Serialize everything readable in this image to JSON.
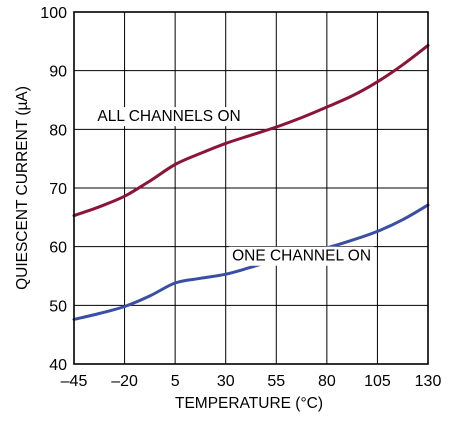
{
  "chart_data": {
    "type": "line",
    "title": "",
    "xlabel": "TEMPERATURE (°C)",
    "ylabel": "QUIESCENT CURRENT (µA)",
    "xlim": [
      -45,
      130
    ],
    "ylim": [
      40,
      100
    ],
    "x_ticks": [
      -45,
      -20,
      5,
      30,
      55,
      80,
      105,
      130
    ],
    "x_tick_labels": [
      "–45",
      "–20",
      "5",
      "30",
      "55",
      "80",
      "105",
      "130"
    ],
    "y_ticks": [
      40,
      50,
      60,
      70,
      80,
      90,
      100
    ],
    "y_tick_labels": [
      "40",
      "50",
      "60",
      "70",
      "80",
      "90",
      "100"
    ],
    "grid": true,
    "legend": "none",
    "series": [
      {
        "color": "#8b1538",
        "x": [
          -45,
          -32.5,
          -20,
          -7.5,
          5,
          17.5,
          30,
          42.5,
          55,
          67.5,
          80,
          92.5,
          105,
          117.5,
          130
        ],
        "y": [
          65.3,
          66.8,
          68.6,
          71.2,
          74.0,
          75.9,
          77.6,
          79.0,
          80.4,
          82.0,
          83.8,
          85.7,
          88.1,
          91.0,
          94.3
        ]
      },
      {
        "color": "#3a4ea3",
        "x": [
          -45,
          -32.5,
          -20,
          -7.5,
          5,
          17.5,
          30,
          42.5,
          55,
          67.5,
          80,
          92.5,
          105,
          117.5,
          130
        ],
        "y": [
          47.6,
          48.6,
          49.8,
          51.6,
          53.8,
          54.6,
          55.3,
          56.5,
          57.8,
          58.8,
          59.8,
          61.1,
          62.6,
          64.6,
          67.1
        ]
      }
    ],
    "annotations": [
      {
        "text": "ALL CHANNELS ON",
        "x": 2,
        "y": 81.4
      },
      {
        "text": "ONE CHANNEL ON",
        "x": 67.5,
        "y": 57.6
      }
    ]
  }
}
